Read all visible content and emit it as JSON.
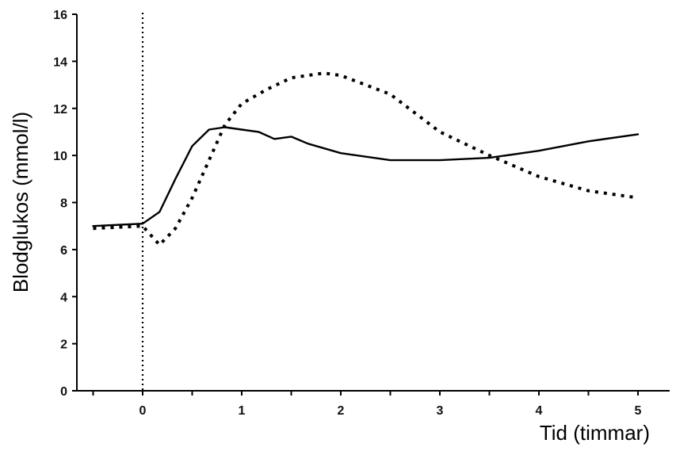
{
  "chart_data": {
    "type": "line",
    "title": "",
    "xlabel": "Tid (timmar)",
    "ylabel": "Blodglukos (mmol/l)",
    "xlim": [
      -0.5,
      5.1
    ],
    "ylim": [
      0,
      16
    ],
    "x_ticks": [
      0,
      1,
      2,
      3,
      4,
      5
    ],
    "x_tick_labels": [
      "0",
      "1",
      "2",
      "3",
      "4",
      "5"
    ],
    "x_minor_ticks": [
      -0.5,
      0.5,
      1.5,
      2.5,
      3.5,
      4.5
    ],
    "y_ticks": [
      0,
      2,
      4,
      6,
      8,
      10,
      12,
      14,
      16
    ],
    "y_tick_labels": [
      "0",
      "2",
      "4",
      "6",
      "8",
      "10",
      "12",
      "14",
      "16"
    ],
    "grid": false,
    "legend": "none",
    "reference_line": {
      "orientation": "vertical",
      "x": 0,
      "style": "dotted"
    },
    "series": [
      {
        "style": "solid",
        "color": "#000000",
        "x": [
          -0.5,
          0,
          0.17,
          0.33,
          0.5,
          0.67,
          0.83,
          1.0,
          1.17,
          1.33,
          1.5,
          1.67,
          2.0,
          2.5,
          3.0,
          3.5,
          4.0,
          4.5,
          5.0
        ],
        "y": [
          7.0,
          7.1,
          7.6,
          9.0,
          10.4,
          11.1,
          11.2,
          11.1,
          11.0,
          10.7,
          10.8,
          10.5,
          10.1,
          9.8,
          9.8,
          9.9,
          10.2,
          10.6,
          10.9
        ]
      },
      {
        "style": "dotted",
        "color": "#000000",
        "x": [
          -0.5,
          0,
          0.17,
          0.33,
          0.5,
          0.67,
          0.83,
          1.0,
          1.25,
          1.5,
          1.83,
          2.0,
          2.5,
          3.0,
          3.5,
          4.0,
          4.5,
          5.0
        ],
        "y": [
          6.9,
          7.0,
          6.2,
          6.9,
          8.2,
          9.8,
          11.3,
          12.2,
          12.8,
          13.3,
          13.5,
          13.4,
          12.6,
          11.0,
          10.0,
          9.1,
          8.5,
          8.2
        ]
      }
    ]
  }
}
